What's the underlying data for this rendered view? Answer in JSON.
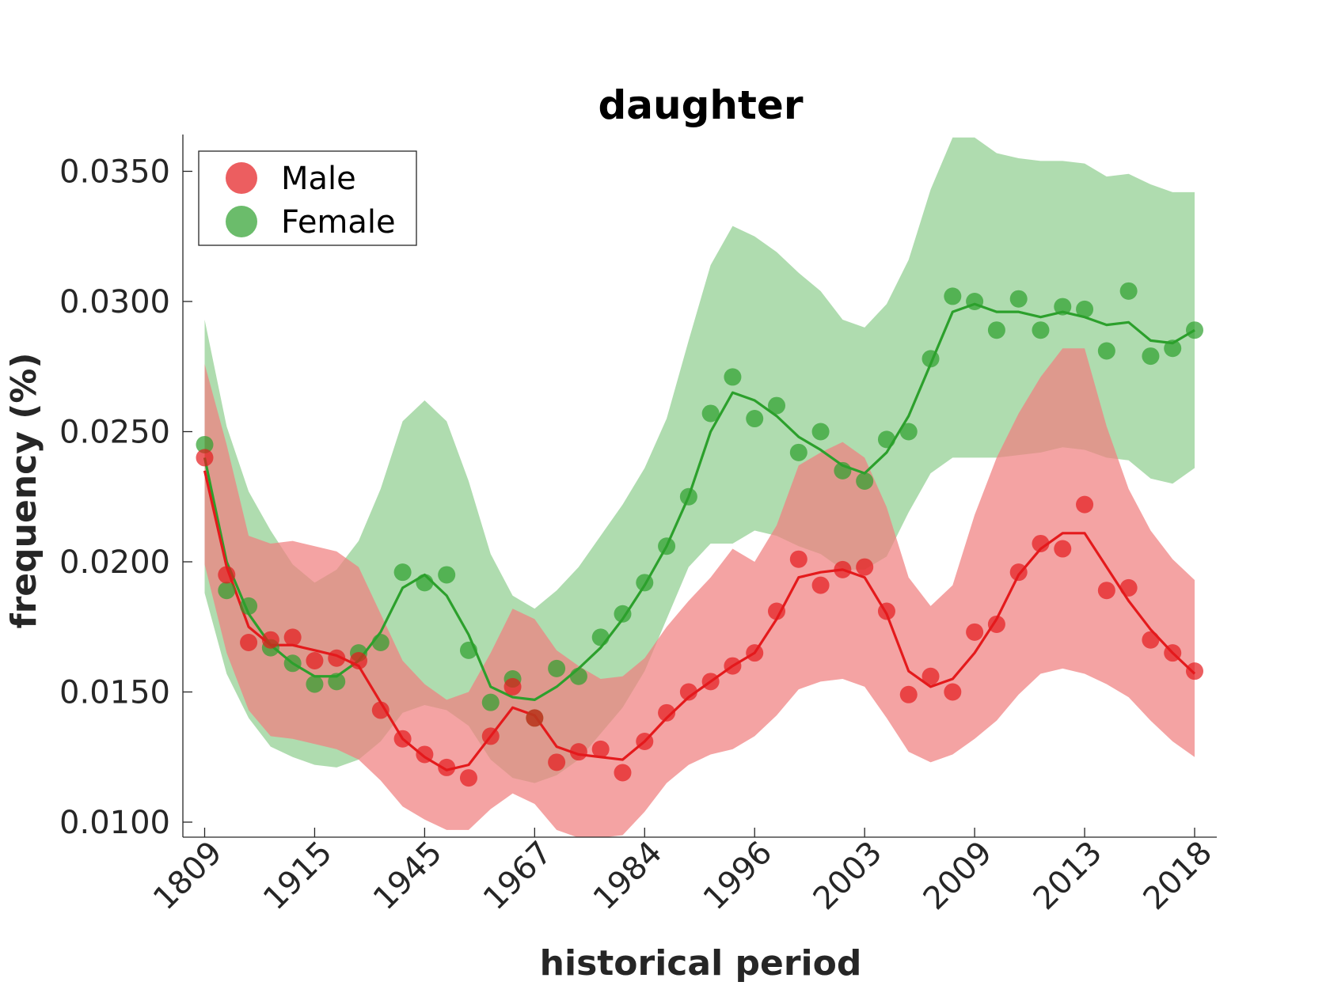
{
  "chart_data": {
    "type": "scatter",
    "title": "daughter",
    "xlabel": "historical period",
    "ylabel": "frequency (%)",
    "x_tick_labels": [
      "1809",
      "1915",
      "1945",
      "1967",
      "1984",
      "1996",
      "2003",
      "2009",
      "2013",
      "2018"
    ],
    "y_ticks": [
      0.01,
      0.015,
      0.02,
      0.025,
      0.03,
      0.035
    ],
    "y_tick_labels": [
      "0.0100",
      "0.0150",
      "0.0200",
      "0.0250",
      "0.0300",
      "0.0350"
    ],
    "ylim": [
      0.0094,
      0.0363
    ],
    "num_periods": 46,
    "legend_position": "top-left",
    "grid": false,
    "series": [
      {
        "name": "Male",
        "color": "#e41a1c",
        "fill_color": "#f08080",
        "points": [
          0.024,
          0.0195,
          0.0169,
          0.017,
          0.0171,
          0.0162,
          0.0163,
          0.0162,
          0.0143,
          0.0132,
          0.0126,
          0.0121,
          0.0117,
          0.0133,
          0.0152,
          0.014,
          0.0123,
          0.0127,
          0.0128,
          0.0119,
          0.0131,
          0.0142,
          0.015,
          0.0154,
          0.016,
          0.0165,
          0.0181,
          0.0201,
          0.0191,
          0.0197,
          0.0198,
          0.0181,
          0.0149,
          0.0156,
          0.015,
          0.0173,
          0.0176,
          0.0196,
          0.0207,
          0.0205,
          0.0222,
          0.0189,
          0.019,
          0.017,
          0.0165,
          0.0158
        ],
        "line": [
          0.0235,
          0.0198,
          0.0175,
          0.0168,
          0.0168,
          0.0166,
          0.0164,
          0.016,
          0.0146,
          0.0132,
          0.0125,
          0.012,
          0.0122,
          0.0133,
          0.0144,
          0.0141,
          0.0129,
          0.0126,
          0.0125,
          0.0124,
          0.0131,
          0.014,
          0.0148,
          0.0154,
          0.016,
          0.0165,
          0.0178,
          0.0194,
          0.0196,
          0.0197,
          0.0194,
          0.018,
          0.0158,
          0.0152,
          0.0155,
          0.0165,
          0.0178,
          0.0195,
          0.0205,
          0.0211,
          0.0211,
          0.0198,
          0.0185,
          0.0174,
          0.0165,
          0.0157
        ],
        "upper": [
          0.0276,
          0.0245,
          0.021,
          0.0207,
          0.0208,
          0.0206,
          0.0204,
          0.0198,
          0.018,
          0.0162,
          0.0153,
          0.0147,
          0.015,
          0.0165,
          0.0182,
          0.0178,
          0.0166,
          0.016,
          0.0155,
          0.0156,
          0.0163,
          0.0175,
          0.0185,
          0.0194,
          0.0205,
          0.02,
          0.0214,
          0.0237,
          0.0242,
          0.0246,
          0.024,
          0.0221,
          0.0194,
          0.0183,
          0.0191,
          0.0218,
          0.024,
          0.0257,
          0.0271,
          0.0282,
          0.0282,
          0.0252,
          0.0228,
          0.0212,
          0.0201,
          0.0193
        ],
        "lower": [
          0.0199,
          0.0165,
          0.0143,
          0.0133,
          0.0132,
          0.013,
          0.0128,
          0.0124,
          0.0116,
          0.0106,
          0.0101,
          0.0097,
          0.0097,
          0.0105,
          0.0111,
          0.0107,
          0.0097,
          0.0094,
          0.0094,
          0.0095,
          0.0104,
          0.0115,
          0.0122,
          0.0126,
          0.0128,
          0.0133,
          0.0141,
          0.0151,
          0.0154,
          0.0155,
          0.0152,
          0.014,
          0.0127,
          0.0123,
          0.0126,
          0.0132,
          0.0139,
          0.0149,
          0.0157,
          0.0159,
          0.0157,
          0.0153,
          0.0148,
          0.0139,
          0.0131,
          0.0125
        ]
      },
      {
        "name": "Female",
        "color": "#2ca02c",
        "fill_color": "#7ec77e",
        "points": [
          0.0245,
          0.0189,
          0.0183,
          0.0167,
          0.0161,
          0.0153,
          0.0154,
          0.0165,
          0.0169,
          0.0196,
          0.0192,
          0.0195,
          0.0166,
          0.0146,
          0.0155,
          0.014,
          0.0159,
          0.0156,
          0.0171,
          0.018,
          0.0192,
          0.0206,
          0.0225,
          0.0257,
          0.0271,
          0.0255,
          0.026,
          0.0242,
          0.025,
          0.0235,
          0.0231,
          0.0247,
          0.025,
          0.0278,
          0.0302,
          0.03,
          0.0289,
          0.0301,
          0.0289,
          0.0298,
          0.0297,
          0.0281,
          0.0304,
          0.0279,
          0.0282,
          0.0289
        ],
        "line": [
          0.024,
          0.02,
          0.018,
          0.0168,
          0.0161,
          0.0156,
          0.0156,
          0.0162,
          0.0173,
          0.019,
          0.0195,
          0.0187,
          0.0172,
          0.0152,
          0.0148,
          0.0147,
          0.0152,
          0.0159,
          0.0167,
          0.0178,
          0.0191,
          0.0206,
          0.0225,
          0.025,
          0.0265,
          0.0262,
          0.0256,
          0.0248,
          0.0243,
          0.0237,
          0.0234,
          0.0242,
          0.0256,
          0.0276,
          0.0296,
          0.0299,
          0.0296,
          0.0296,
          0.0294,
          0.0296,
          0.0294,
          0.0291,
          0.0292,
          0.0285,
          0.0284,
          0.0289
        ],
        "upper": [
          0.0293,
          0.0252,
          0.0227,
          0.0212,
          0.0199,
          0.0192,
          0.0197,
          0.0208,
          0.0228,
          0.0254,
          0.0262,
          0.0254,
          0.0231,
          0.0203,
          0.0187,
          0.0182,
          0.0189,
          0.0198,
          0.021,
          0.0222,
          0.0236,
          0.0255,
          0.0285,
          0.0314,
          0.0329,
          0.0325,
          0.0319,
          0.0311,
          0.0304,
          0.0293,
          0.029,
          0.0299,
          0.0316,
          0.0343,
          0.0363,
          0.0363,
          0.0357,
          0.0355,
          0.0354,
          0.0354,
          0.0353,
          0.0348,
          0.0349,
          0.0345,
          0.0342,
          0.0342
        ],
        "lower": [
          0.0188,
          0.0157,
          0.014,
          0.0129,
          0.0125,
          0.0122,
          0.0121,
          0.0124,
          0.0131,
          0.0142,
          0.0145,
          0.0143,
          0.0137,
          0.0124,
          0.0117,
          0.0115,
          0.0118,
          0.0124,
          0.0134,
          0.0144,
          0.0158,
          0.0178,
          0.0198,
          0.0207,
          0.0207,
          0.0212,
          0.021,
          0.0206,
          0.0203,
          0.0197,
          0.0197,
          0.0202,
          0.0219,
          0.0234,
          0.024,
          0.024,
          0.024,
          0.0241,
          0.0242,
          0.0244,
          0.0243,
          0.024,
          0.0239,
          0.0232,
          0.023,
          0.0236
        ]
      }
    ]
  }
}
